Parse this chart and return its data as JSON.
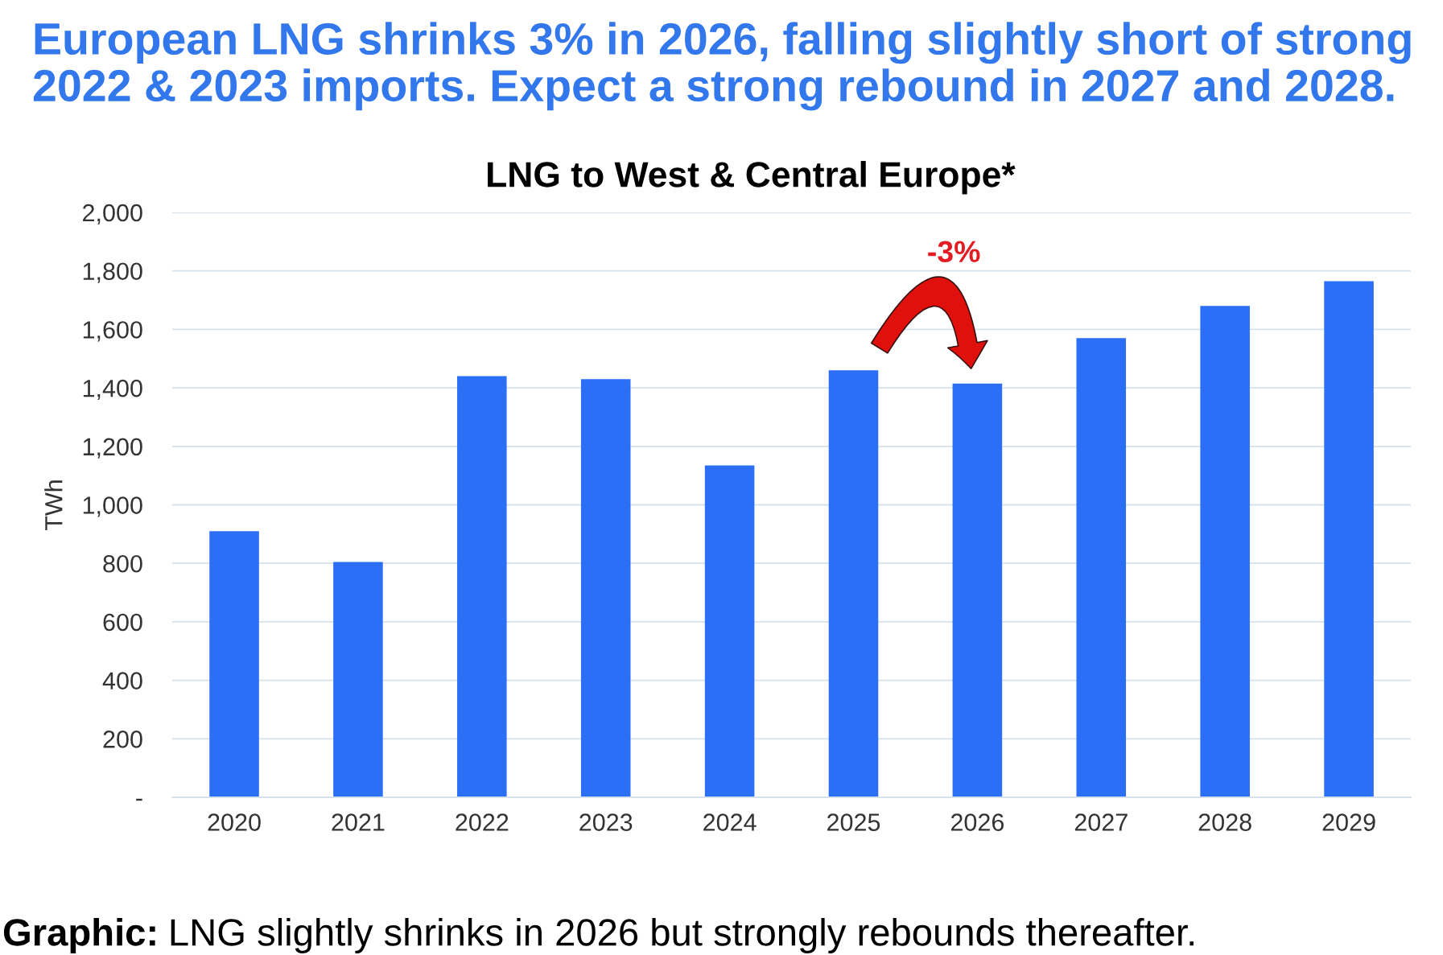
{
  "chart_data": {
    "type": "bar",
    "title": "European LNG shrinks 3% in 2026, falling slightly short of strong\n2022 & 2023 imports. Expect a strong rebound in 2027 and 2028.",
    "subtitle": "LNG to West & Central Europe*",
    "ylabel": "TWh",
    "categories": [
      "2020",
      "2021",
      "2022",
      "2023",
      "2024",
      "2025",
      "2026",
      "2027",
      "2028",
      "2029"
    ],
    "values": [
      910,
      805,
      1440,
      1430,
      1135,
      1460,
      1415,
      1570,
      1680,
      1765
    ],
    "color": "#2a6ff6",
    "ylim": [
      0,
      2000
    ],
    "yticks": [
      {
        "value": 0,
        "label": "-"
      },
      200,
      400,
      600,
      800,
      {
        "value": 1000,
        "label": "1,000"
      },
      {
        "value": 1200,
        "label": "1,200"
      },
      {
        "value": 1400,
        "label": "1,400"
      },
      {
        "value": 1600,
        "label": "1,600"
      },
      {
        "value": 1800,
        "label": "1,800"
      },
      {
        "value": 2000,
        "label": "2,000"
      }
    ],
    "grid": "y",
    "annotations": [
      "-3%",
      "Graphic:",
      "LNG slightly shrinks in 2026 but strongly rebounds thereafter."
    ]
  }
}
